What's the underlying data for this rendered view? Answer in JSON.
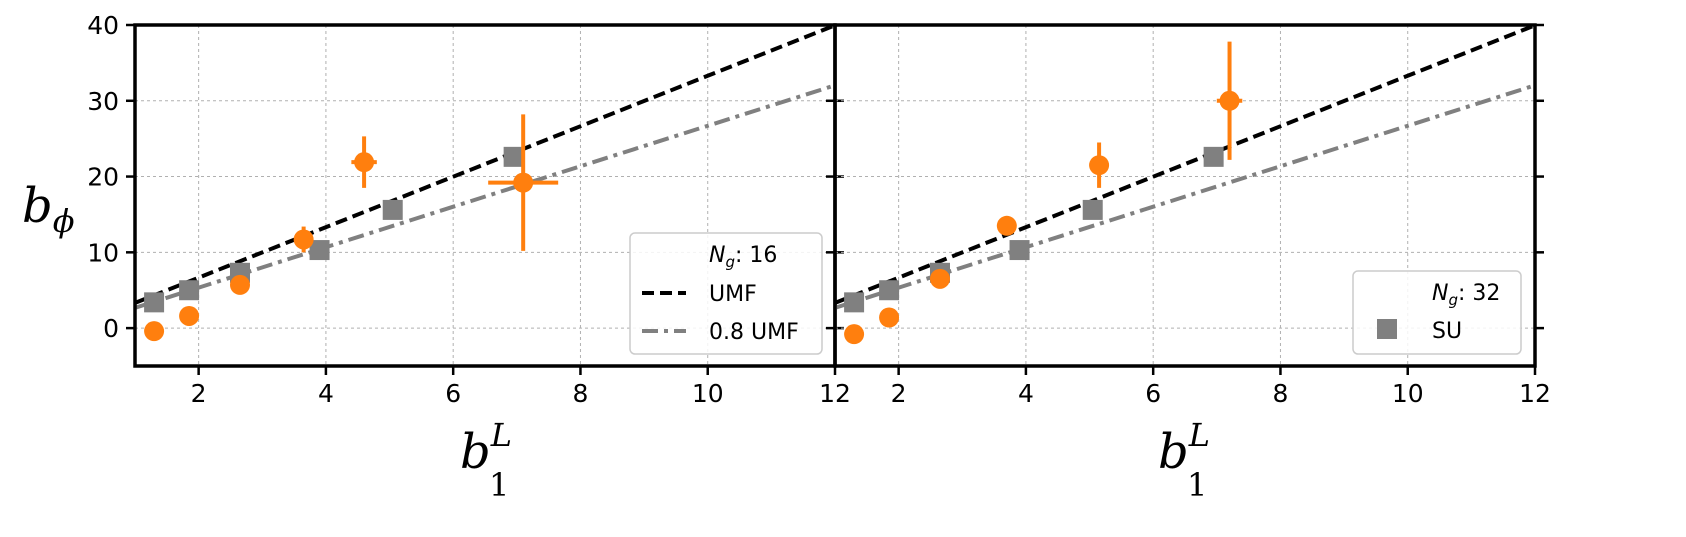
{
  "chart_data": [
    {
      "type": "scatter",
      "panel": "left",
      "xlim": [
        1,
        12
      ],
      "ylim": [
        -5,
        40
      ],
      "xticks": [
        2,
        4,
        6,
        8,
        10,
        12
      ],
      "yticks": [
        0,
        10,
        20,
        30,
        40
      ],
      "xlabel": "b_1^L",
      "ylabel": "b_phi",
      "grid": true,
      "legend": {
        "placement": "lower-right",
        "title": "N_g: 16",
        "entries": [
          "UMF",
          "0.8 UMF"
        ]
      },
      "lines": [
        {
          "name": "UMF",
          "slope": 3.33,
          "intercept": 0.0,
          "color": "#000000",
          "style": "dashed"
        },
        {
          "name": "0.8 UMF",
          "slope": 2.67,
          "intercept": 0.0,
          "color": "#808080",
          "style": "dashdot"
        }
      ],
      "series": [
        {
          "marker": "square",
          "color": "#808080",
          "points": [
            {
              "x": 1.3,
              "y": 3.4
            },
            {
              "x": 1.85,
              "y": 5.0
            },
            {
              "x": 2.65,
              "y": 7.3
            },
            {
              "x": 3.9,
              "y": 10.3
            },
            {
              "x": 5.05,
              "y": 15.6
            },
            {
              "x": 6.95,
              "y": 22.6
            }
          ]
        },
        {
          "marker": "circle",
          "color": "#ff7f0e",
          "points": [
            {
              "x": 1.3,
              "y": -0.4
            },
            {
              "x": 1.85,
              "y": 1.6
            },
            {
              "x": 2.65,
              "y": 5.7
            },
            {
              "x": 3.65,
              "y": 11.7,
              "xerr": 0.15,
              "yerr": 1.7
            },
            {
              "x": 4.6,
              "y": 21.9,
              "xerr": 0.2,
              "yerr": 3.4
            },
            {
              "x": 7.1,
              "y": 19.2,
              "xerr": 0.55,
              "yerr": 9.0
            }
          ]
        }
      ]
    },
    {
      "type": "scatter",
      "panel": "right",
      "xlim": [
        1,
        12
      ],
      "ylim": [
        -5,
        40
      ],
      "xticks": [
        2,
        4,
        6,
        8,
        10,
        12
      ],
      "yticks": [
        0,
        10,
        20,
        30,
        40
      ],
      "xlabel": "b_1^L",
      "grid": true,
      "legend": {
        "placement": "lower-right",
        "title": "N_g: 32",
        "entries": [
          "SU"
        ]
      },
      "lines": [
        {
          "name": "UMF",
          "slope": 3.33,
          "intercept": 0.0,
          "color": "#000000",
          "style": "dashed"
        },
        {
          "name": "0.8 UMF",
          "slope": 2.67,
          "intercept": 0.0,
          "color": "#808080",
          "style": "dashdot"
        }
      ],
      "series": [
        {
          "name": "SU",
          "marker": "square",
          "color": "#808080",
          "points": [
            {
              "x": 1.3,
              "y": 3.4
            },
            {
              "x": 1.85,
              "y": 5.0
            },
            {
              "x": 2.65,
              "y": 7.3
            },
            {
              "x": 3.9,
              "y": 10.3
            },
            {
              "x": 5.05,
              "y": 15.6
            },
            {
              "x": 6.95,
              "y": 22.6
            }
          ]
        },
        {
          "marker": "circle",
          "color": "#ff7f0e",
          "points": [
            {
              "x": 1.3,
              "y": -0.8
            },
            {
              "x": 1.85,
              "y": 1.4
            },
            {
              "x": 2.65,
              "y": 6.5
            },
            {
              "x": 3.7,
              "y": 13.5,
              "xerr": 0.1,
              "yerr": 1.0
            },
            {
              "x": 5.15,
              "y": 21.5,
              "xerr": 0.12,
              "yerr": 3.0
            },
            {
              "x": 7.2,
              "y": 30.0,
              "xerr": 0.2,
              "yerr": 7.8
            }
          ]
        }
      ]
    }
  ],
  "labels": {
    "ylabel_main": "b",
    "ylabel_sub": "ϕ",
    "xlabel_main": "b",
    "xlabel_sub": "1",
    "xlabel_sup": "L",
    "legend_left_title_main": "N",
    "legend_left_title_sub": "g",
    "legend_left_title_rest": ": 16",
    "legend_left_line1": "UMF",
    "legend_left_line2": "0.8 UMF",
    "legend_right_title_main": "N",
    "legend_right_title_sub": "g",
    "legend_right_title_rest": ": 32",
    "legend_right_marker1": "SU"
  }
}
